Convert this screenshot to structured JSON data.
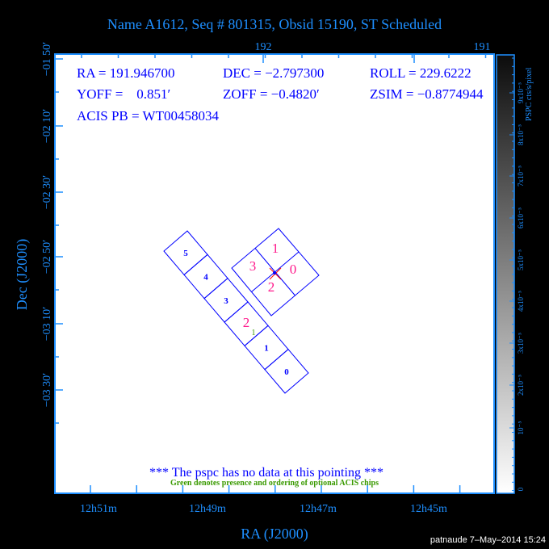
{
  "title": "Name A1612, Seq # 801315, Obsid 15190, ST Scheduled",
  "colors": {
    "axis": "#1e8fff",
    "text": "#0000ff",
    "highlight": "#ff1a8c",
    "optional": "#3a9a00",
    "aimpoint": "#ff0000"
  },
  "info": {
    "ra": "RA = 191.946700",
    "dec": "DEC = −2.797300",
    "roll": "ROLL = 229.6222",
    "yoff": "YOFF =    0.851′",
    "zoff": "ZOFF = −0.4820′",
    "zsim": "ZSIM = −0.8774944",
    "acis_pb": "ACIS PB = WT00458034"
  },
  "axes": {
    "x_label": "RA (J2000)",
    "y_label": "Dec (J2000)",
    "x_ticks": [
      "12h51m",
      "12h49m",
      "12h47m",
      "12h45m"
    ],
    "x_top_ticks": [
      "192",
      "191"
    ],
    "y_ticks": [
      "−01 50′",
      "−02 10′",
      "−02 30′",
      "−02 50′",
      "−03 10′",
      "−03 30′"
    ]
  },
  "colorbar": {
    "label": "PSPC cts/s/pixel",
    "ticks": [
      "0",
      "10⁻⁵",
      "2x10⁻⁵",
      "3x10⁻⁵",
      "4x10⁻⁵",
      "5x10⁻⁵",
      "6x10⁻⁵",
      "7x10⁻⁵",
      "8x10⁻⁵",
      "9x10⁻⁵"
    ]
  },
  "acis_s_chips": [
    "5",
    "4",
    "3",
    "2",
    "1",
    "0"
  ],
  "acis_s_highlight": [
    "2"
  ],
  "acis_i_chips": {
    "top": "1",
    "right": "0",
    "bottom": "2",
    "left": "3"
  },
  "optional_chip_label": "1",
  "messages": {
    "no_data": "*** The pspc has no data at this pointing ***",
    "legend": "Green denotes presence and ordering of optional ACIS chips"
  },
  "footer": "patnaude  7–May–2014 15:24"
}
